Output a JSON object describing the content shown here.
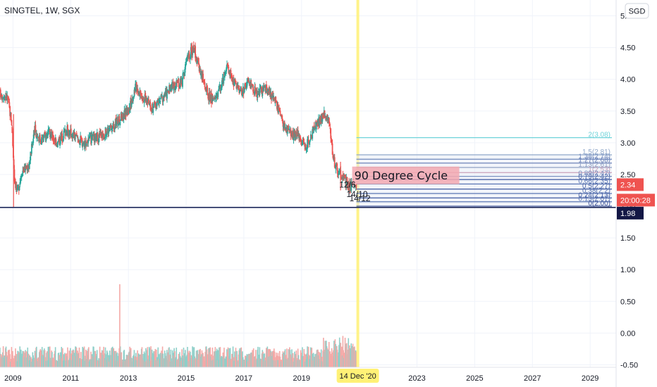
{
  "header": {
    "title": "SINGTEL, 1W, SGX",
    "currency": "SGD"
  },
  "colors": {
    "up": "#26a69a",
    "down": "#ef5350",
    "vol_up": "#8fcfc9",
    "vol_down": "#f4a9a7",
    "cursor": "#fff176",
    "support": "#1f2a5c",
    "price_tag": "#ef5350",
    "support_tag": "#131745",
    "cycle_box": "#f3a8b0"
  },
  "chart_data": {
    "type": "candlestick",
    "x_ticks": [
      "2009",
      "2011",
      "2013",
      "2015",
      "2017",
      "2019",
      "2023",
      "2025",
      "2027",
      "2029"
    ],
    "y_ticks": [
      "5.00",
      "4.50",
      "4.00",
      "3.50",
      "3.00",
      "2.50",
      "2.00",
      "1.50",
      "1.00",
      "0.50",
      "0.00",
      "-0.50"
    ],
    "y_range": [
      -0.85,
      5.25
    ],
    "x_range": [
      2008.6,
      2029.95
    ],
    "price_path": [
      [
        2008.6,
        3.78
      ],
      [
        2008.85,
        3.72
      ],
      [
        2009.0,
        3.35
      ],
      [
        2009.1,
        2.45
      ],
      [
        2009.2,
        2.2
      ],
      [
        2009.35,
        2.55
      ],
      [
        2009.6,
        2.65
      ],
      [
        2009.8,
        3.2
      ],
      [
        2010.0,
        3.05
      ],
      [
        2010.3,
        3.15
      ],
      [
        2010.6,
        3.0
      ],
      [
        2010.9,
        3.2
      ],
      [
        2011.2,
        3.1
      ],
      [
        2011.5,
        3.0
      ],
      [
        2011.8,
        3.05
      ],
      [
        2012.2,
        3.15
      ],
      [
        2012.5,
        3.25
      ],
      [
        2012.8,
        3.4
      ],
      [
        2013.1,
        3.55
      ],
      [
        2013.3,
        3.9
      ],
      [
        2013.6,
        3.7
      ],
      [
        2013.9,
        3.55
      ],
      [
        2014.2,
        3.7
      ],
      [
        2014.6,
        3.9
      ],
      [
        2014.9,
        3.95
      ],
      [
        2015.1,
        4.35
      ],
      [
        2015.3,
        4.5
      ],
      [
        2015.5,
        4.2
      ],
      [
        2015.8,
        3.75
      ],
      [
        2016.0,
        3.65
      ],
      [
        2016.3,
        3.95
      ],
      [
        2016.5,
        4.2
      ],
      [
        2016.7,
        3.95
      ],
      [
        2017.0,
        3.8
      ],
      [
        2017.2,
        3.95
      ],
      [
        2017.5,
        3.8
      ],
      [
        2017.8,
        3.85
      ],
      [
        2018.1,
        3.7
      ],
      [
        2018.4,
        3.3
      ],
      [
        2018.7,
        3.1
      ],
      [
        2018.9,
        3.15
      ],
      [
        2019.2,
        2.95
      ],
      [
        2019.5,
        3.2
      ],
      [
        2019.8,
        3.45
      ],
      [
        2020.0,
        3.35
      ],
      [
        2020.15,
        2.75
      ],
      [
        2020.3,
        2.55
      ],
      [
        2020.5,
        2.45
      ],
      [
        2020.7,
        2.3
      ],
      [
        2020.95,
        2.34
      ]
    ],
    "spikes": [
      [
        2009.07,
        3.45,
        1.98
      ],
      [
        2015.25,
        4.58,
        4.3
      ],
      [
        2020.4,
        2.7,
        2.25
      ]
    ],
    "volume_axis_zero": 0.0,
    "volume_spike": {
      "x": 2012.75,
      "value": 0.77
    },
    "support_level": {
      "value": 1.98,
      "label": "1.98"
    },
    "current_price": {
      "value": 2.34,
      "label": "2.34",
      "time": "20:00:28"
    },
    "cursor": {
      "x": 2021.0,
      "label": "14 Dec '20"
    },
    "fib_levels": [
      {
        "ratio_label": "2(3.08)",
        "value": 3.08,
        "color": "#6fd3d9"
      },
      {
        "ratio_label": "1.5(2.81)",
        "value": 2.81,
        "color": "#8fa7c9"
      },
      {
        "ratio_label": "1.38(2.74)",
        "value": 2.74,
        "color": "#7b93c2"
      },
      {
        "ratio_label": "1.27(2.68)",
        "value": 2.68,
        "color": "#6d83b9"
      },
      {
        "ratio_label": "1.13(2.61)",
        "value": 2.61,
        "color": "#90a0c4"
      },
      {
        "ratio_label": "1(2.53)",
        "value": 2.53,
        "color": "#c9a0b9"
      },
      {
        "ratio_label": "0.89(2.47)",
        "value": 2.47,
        "color": "#7b93c2"
      },
      {
        "ratio_label": "0.79(2.42)",
        "value": 2.42,
        "color": "#4f67a8"
      },
      {
        "ratio_label": "0.66(2.35)",
        "value": 2.35,
        "color": "#5a76b4"
      },
      {
        "ratio_label": "0.5(2.27)",
        "value": 2.27,
        "color": "#4f67a8"
      },
      {
        "ratio_label": "0.38(2.2)",
        "value": 2.2,
        "color": "#5a76b4"
      },
      {
        "ratio_label": "0.24(2.13)",
        "value": 2.13,
        "color": "#4f67a8"
      },
      {
        "ratio_label": "0.13(2.07)",
        "value": 2.07,
        "color": "#5a76b4"
      },
      {
        "ratio_label": "0(2.00)",
        "value": 2.0,
        "color": "#3f5498"
      }
    ],
    "annotations": [
      {
        "text": "90 Degree Cycle",
        "x": 2020.95,
        "value": 2.48
      },
      {
        "text": "12/6",
        "x": 2020.6,
        "value": 2.34
      },
      {
        "text": "14/10",
        "x": 2020.85,
        "value": 2.19
      },
      {
        "text": "14/12",
        "x": 2020.95,
        "value": 2.12
      }
    ]
  }
}
